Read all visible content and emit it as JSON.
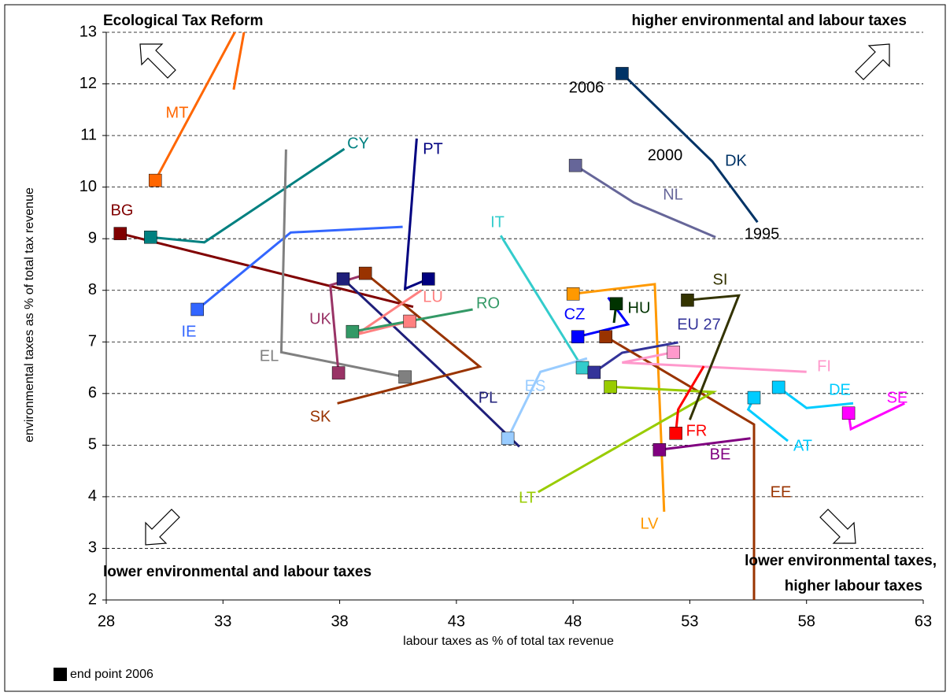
{
  "chart_data": {
    "type": "line",
    "x_label": "labour taxes as % of total tax revenue",
    "y_label": "environmental taxes as % of total tax revenue",
    "xlim": [
      28,
      63
    ],
    "ylim": [
      2,
      13
    ],
    "xticks": [
      28,
      33,
      38,
      43,
      48,
      53,
      58,
      63
    ],
    "yticks": [
      2,
      3,
      4,
      5,
      6,
      7,
      8,
      9,
      10,
      11,
      12,
      13
    ],
    "grid": true,
    "legend_note": "end point 2006",
    "quadrant_labels": [
      "Ecological Tax Reform",
      "higher environmental and labour taxes",
      "lower environmental and labour taxes",
      "lower environmental taxes,",
      "higher labour taxes"
    ],
    "year_labels": [
      "1995",
      "2000",
      "2006"
    ],
    "series": [
      {
        "name": "DK",
        "color": "#003366",
        "x": [
          55.9,
          53.96,
          50.1
        ],
        "values": [
          9.32,
          10.5,
          12.2
        ]
      },
      {
        "name": "NL",
        "color": "#666699",
        "x": [
          54.1,
          50.6,
          48.1
        ],
        "values": [
          9.03,
          9.7,
          10.42
        ]
      },
      {
        "name": "MT",
        "color": "#ff6600",
        "x": [
          33.46,
          34.1,
          30.1
        ],
        "values": [
          11.89,
          13.5,
          10.13
        ]
      },
      {
        "name": "CY",
        "color": "#008080",
        "x": [
          38.2,
          32.2,
          29.9
        ],
        "values": [
          10.74,
          8.93,
          9.03
        ]
      },
      {
        "name": "PT",
        "color": "#000080",
        "x": [
          41.3,
          40.8,
          41.8
        ],
        "values": [
          10.94,
          8.03,
          8.22
        ]
      },
      {
        "name": "BG",
        "color": "#800000",
        "x": [
          41.15,
          28.6
        ],
        "values": [
          7.68,
          9.1
        ]
      },
      {
        "name": "IE",
        "color": "#3366ff",
        "x": [
          40.7,
          35.9,
          31.9
        ],
        "values": [
          9.23,
          9.12,
          7.63
        ]
      },
      {
        "name": "EL",
        "color": "#808080",
        "x": [
          35.7,
          35.5,
          40.8
        ],
        "values": [
          10.73,
          6.8,
          6.32
        ]
      },
      {
        "name": "UK",
        "color": "#993366",
        "x": [
          39.0,
          37.6,
          37.95
        ],
        "values": [
          8.29,
          8.1,
          6.4
        ]
      },
      {
        "name": "PL",
        "color": "#1f1f7a",
        "x": [
          45.7,
          42.3,
          38.15
        ],
        "values": [
          4.97,
          6.46,
          8.22
        ]
      },
      {
        "name": "SK",
        "color": "#993300",
        "x": [
          37.9,
          44.0,
          39.1
        ],
        "values": [
          5.81,
          6.52,
          8.33
        ]
      },
      {
        "name": "LU",
        "color": "#ff8080",
        "x": [
          41.5,
          38.7,
          41.0
        ],
        "values": [
          8.0,
          7.14,
          7.4
        ]
      },
      {
        "name": "RO",
        "color": "#339966",
        "x": [
          43.7,
          38.55
        ],
        "values": [
          7.63,
          7.2
        ]
      },
      {
        "name": "IT",
        "color": "#33cccc",
        "x": [
          44.9,
          48.4
        ],
        "values": [
          9.06,
          6.5
        ]
      },
      {
        "name": "ES",
        "color": "#99ccff",
        "x": [
          48.6,
          46.6,
          45.2
        ],
        "values": [
          6.68,
          6.42,
          5.13
        ]
      },
      {
        "name": "CZ",
        "color": "#0000ff",
        "x": [
          49.5,
          50.35,
          48.2
        ],
        "values": [
          7.86,
          7.34,
          7.1
        ]
      },
      {
        "name": "HU",
        "color": "#003300",
        "x": [
          49.75,
          49.85
        ],
        "values": [
          7.37,
          7.74
        ]
      },
      {
        "name": "LV",
        "color": "#ff9900",
        "x": [
          51.9,
          51.5,
          48.0
        ],
        "values": [
          3.71,
          8.12,
          7.93
        ]
      },
      {
        "name": "EU 27",
        "color": "#333399",
        "x": [
          52.5,
          50.1,
          48.9
        ],
        "values": [
          6.99,
          6.79,
          6.41
        ]
      },
      {
        "name": "EE",
        "color": "#993300",
        "x": [
          55.75,
          55.75,
          49.4
        ],
        "values": [
          2.0,
          5.4,
          7.1
        ]
      },
      {
        "name": "FI",
        "color": "#ff99cc",
        "x": [
          58.0,
          50.1,
          52.3
        ],
        "values": [
          6.42,
          6.6,
          6.8
        ]
      },
      {
        "name": "LT",
        "color": "#99cc00",
        "x": [
          46.5,
          54.0,
          49.6
        ],
        "values": [
          4.09,
          6.03,
          6.13
        ]
      },
      {
        "name": "FR",
        "color": "#ff0000",
        "x": [
          53.6,
          52.5,
          52.4
        ],
        "values": [
          6.53,
          5.69,
          5.23
        ]
      },
      {
        "name": "SI",
        "color": "#333300",
        "x": [
          53.0,
          55.1,
          52.9
        ],
        "values": [
          5.49,
          7.9,
          7.81
        ]
      },
      {
        "name": "BE",
        "color": "#800080",
        "x": [
          55.6,
          51.7
        ],
        "values": [
          5.13,
          4.91
        ]
      },
      {
        "name": "AT",
        "color": "#00ccff",
        "x": [
          57.2,
          55.5,
          55.75
        ],
        "values": [
          5.08,
          5.69,
          5.92
        ]
      },
      {
        "name": "DE",
        "color": "#00ccff",
        "x": [
          60.0,
          58.0,
          56.8
        ],
        "values": [
          5.81,
          5.72,
          6.12
        ]
      },
      {
        "name": "SE",
        "color": "#ff00ff",
        "x": [
          62.2,
          59.9,
          59.8
        ],
        "values": [
          5.81,
          5.31,
          5.62
        ]
      }
    ]
  }
}
